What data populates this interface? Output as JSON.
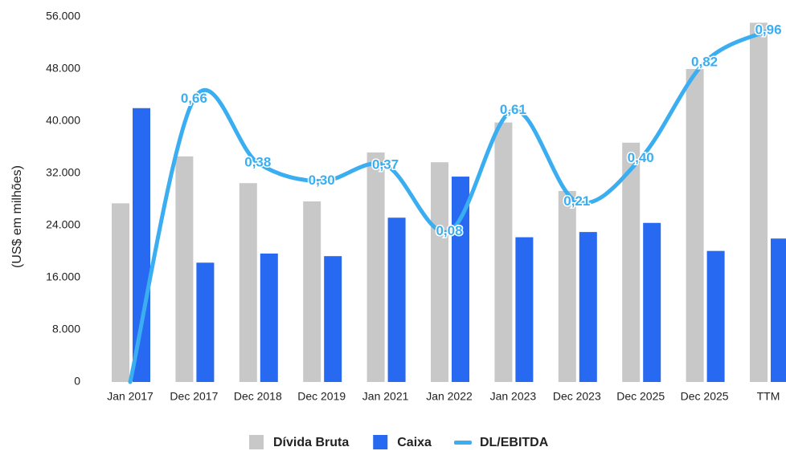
{
  "chart_data": {
    "type": "bar_line",
    "y_axis_label": "(US$ em milhões)",
    "categories": [
      "Jan 2017",
      "Dec 2017",
      "Dec 2018",
      "Dec 2019",
      "Jan 2021",
      "Jan 2022",
      "Jan 2023",
      "Dec 2023",
      "Dec 2025",
      "Dec 2025",
      "TTM"
    ],
    "series": [
      {
        "name": "Dívida Bruta",
        "color": "#c8c8c8",
        "type": "bar",
        "values": [
          27400,
          34600,
          30500,
          27700,
          35200,
          33700,
          39800,
          29300,
          36700,
          48000,
          55100
        ]
      },
      {
        "name": "Caixa",
        "color": "#2769f0",
        "type": "bar",
        "values": [
          42000,
          18300,
          19700,
          19300,
          25200,
          31500,
          22200,
          23000,
          24400,
          20100,
          22000
        ]
      },
      {
        "name": "DL/EBITDA",
        "color": "#3aaef0",
        "type": "line",
        "axis": "y2",
        "values": [
          -0.58,
          0.66,
          0.38,
          0.3,
          0.37,
          0.08,
          0.61,
          0.21,
          0.4,
          0.82,
          0.96
        ],
        "value_labels": [
          null,
          "0,66",
          "0,38",
          "0,30",
          "0,37",
          "0,08",
          "0,61",
          "0,21",
          "0,40",
          "0,82",
          "0,96"
        ]
      }
    ],
    "ylim": [
      0,
      56000
    ],
    "yticks": [
      0,
      {
        "value": 8000,
        "label": "8.000"
      },
      {
        "value": 16000,
        "label": "16.000"
      },
      {
        "value": 24000,
        "label": "24.000"
      },
      {
        "value": 32000,
        "label": "32.000"
      },
      {
        "value": 40000,
        "label": "40.000"
      },
      {
        "value": 48000,
        "label": "48.000"
      },
      {
        "value": 56000,
        "label": "56.000"
      }
    ],
    "y2lim": [
      -0.58,
      1.02
    ],
    "legend": "bottom"
  }
}
